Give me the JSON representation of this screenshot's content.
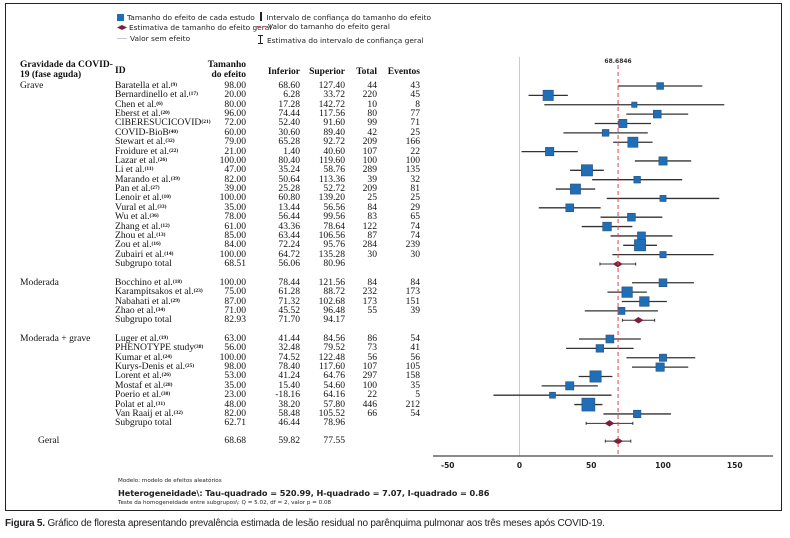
{
  "legend": {
    "study_effect": "Tamanho do efeito de cada estudo",
    "overall_estimate": "Estimativa de tamanho do efeito geral",
    "no_effect": "Valor sem efeito",
    "study_ci": "Intervalo de confiança do tamanho do efeito",
    "overall_value": "Valor do tamanho do efeito geral",
    "overall_ci": "Estimativa do intervalo de confiança geral"
  },
  "headers": {
    "severity": "Gravidade da COVID-19 (fase aguda)",
    "id": "ID",
    "effect": "Tamanho do efeito",
    "lower": "Inferior",
    "upper": "Superior",
    "total": "Total",
    "events": "Eventos"
  },
  "colors": {
    "study_marker": "#1f6fb8",
    "summary_marker": "#7a1f3d",
    "reference_line": "#e0444f",
    "zero_line": "#c8c8d8"
  },
  "footer": {
    "model": "Modelo: modelo de efeitos aleatórios",
    "heterogeneity": "Heterogeneidade\\: Tau-quadrado = 520.99, H-quadrado = 7.07, I-quadrado = 0.86",
    "homogeneity": "Teste da homogeneidade entre subgrupos\\: Q = 5.02, df = 2, valor p = 0.08"
  },
  "caption": {
    "label": "Figura 5.",
    "text": " Gráfico de floresta apresentando prevalência estimada de lesão residual no parênquima pulmonar aos três meses após COVID-19."
  },
  "chart_data": {
    "type": "forest",
    "title": "",
    "xlabel": "",
    "xlim": [
      -50,
      175
    ],
    "xticks": [
      -50,
      0,
      50,
      100,
      150
    ],
    "reference_value": 0,
    "overall_effect_label": "68.6846",
    "overall_effect_value": 68.6846,
    "groups": [
      {
        "name": "Grave",
        "studies": [
          {
            "id": "Baratella et al.",
            "ref": "(9)",
            "effect": 98.0,
            "lower": 68.6,
            "upper": 127.4,
            "total": 44,
            "events": 43
          },
          {
            "id": "Bernardinello et al.",
            "ref": "(17)",
            "effect": 20.0,
            "lower": 6.28,
            "upper": 33.72,
            "total": 220,
            "events": 45
          },
          {
            "id": "Chen et al.",
            "ref": "(6)",
            "effect": 80.0,
            "lower": 17.28,
            "upper": 142.72,
            "total": 10,
            "events": 8
          },
          {
            "id": "Eberst et al.",
            "ref": "(20)",
            "effect": 96.0,
            "lower": 74.44,
            "upper": 117.56,
            "total": 80,
            "events": 77
          },
          {
            "id": "CIBERESUCICOVID",
            "ref": "(21)",
            "effect": 72.0,
            "lower": 52.4,
            "upper": 91.6,
            "total": 99,
            "events": 71
          },
          {
            "id": "COVID-BioB",
            "ref": "(40)",
            "effect": 60.0,
            "lower": 30.6,
            "upper": 89.4,
            "total": 42,
            "events": 25
          },
          {
            "id": "Stewart et al.",
            "ref": "(32)",
            "effect": 79.0,
            "lower": 65.28,
            "upper": 92.72,
            "total": 209,
            "events": 166
          },
          {
            "id": "Froidure et al.",
            "ref": "(22)",
            "effect": 21.0,
            "lower": 1.4,
            "upper": 40.6,
            "total": 107,
            "events": 22
          },
          {
            "id": "Lazar et al.",
            "ref": "(26)",
            "effect": 100.0,
            "lower": 80.4,
            "upper": 119.6,
            "total": 100,
            "events": 100
          },
          {
            "id": "Li et al.",
            "ref": "(11)",
            "effect": 47.0,
            "lower": 35.24,
            "upper": 58.76,
            "total": 289,
            "events": 135
          },
          {
            "id": "Marando et al.",
            "ref": "(39)",
            "effect": 82.0,
            "lower": 50.64,
            "upper": 113.36,
            "total": 39,
            "events": 32
          },
          {
            "id": "Pan et al.",
            "ref": "(27)",
            "effect": 39.0,
            "lower": 25.28,
            "upper": 52.72,
            "total": 209,
            "events": 81
          },
          {
            "id": "Lenoir et al.",
            "ref": "(10)",
            "effect": 100.0,
            "lower": 60.8,
            "upper": 139.2,
            "total": 25,
            "events": 25
          },
          {
            "id": "Vural et al.",
            "ref": "(33)",
            "effect": 35.0,
            "lower": 13.44,
            "upper": 56.56,
            "total": 84,
            "events": 29
          },
          {
            "id": "Wu et al.",
            "ref": "(36)",
            "effect": 78.0,
            "lower": 56.44,
            "upper": 99.56,
            "total": 83,
            "events": 65
          },
          {
            "id": "Zhang et al.",
            "ref": "(12)",
            "effect": 61.0,
            "lower": 43.36,
            "upper": 78.64,
            "total": 122,
            "events": 74
          },
          {
            "id": "Zhou et al.",
            "ref": "(13)",
            "effect": 85.0,
            "lower": 63.44,
            "upper": 106.56,
            "total": 87,
            "events": 74
          },
          {
            "id": "Zou et al.",
            "ref": "(16)",
            "effect": 84.0,
            "lower": 72.24,
            "upper": 95.76,
            "total": 284,
            "events": 239
          },
          {
            "id": "Zubairi et al.",
            "ref": "(14)",
            "effect": 100.0,
            "lower": 64.72,
            "upper": 135.28,
            "total": 30,
            "events": 30
          }
        ],
        "subtotal": {
          "id": "Subgrupo total",
          "effect": 68.51,
          "lower": 56.06,
          "upper": 80.96
        }
      },
      {
        "name": "Moderada",
        "studies": [
          {
            "id": "Bocchino et al.",
            "ref": "(18)",
            "effect": 100.0,
            "lower": 78.44,
            "upper": 121.56,
            "total": 84,
            "events": 84
          },
          {
            "id": "Karampitsakos et al.",
            "ref": "(23)",
            "effect": 75.0,
            "lower": 61.28,
            "upper": 88.72,
            "total": 232,
            "events": 173
          },
          {
            "id": "Nabahati et al.",
            "ref": "(29)",
            "effect": 87.0,
            "lower": 71.32,
            "upper": 102.68,
            "total": 173,
            "events": 151
          },
          {
            "id": "Zhao et al.",
            "ref": "(34)",
            "effect": 71.0,
            "lower": 45.52,
            "upper": 96.48,
            "total": 55,
            "events": 39
          }
        ],
        "subtotal": {
          "id": "Subgrupo total",
          "effect": 82.93,
          "lower": 71.7,
          "upper": 94.17
        }
      },
      {
        "name": "Moderada + grave",
        "studies": [
          {
            "id": "Luger et al.",
            "ref": "(19)",
            "effect": 63.0,
            "lower": 41.44,
            "upper": 84.56,
            "total": 86,
            "events": 54
          },
          {
            "id": "PHENOTYPE study",
            "ref": "(38)",
            "effect": 56.0,
            "lower": 32.48,
            "upper": 79.52,
            "total": 73,
            "events": 41
          },
          {
            "id": "Kumar et al.",
            "ref": "(24)",
            "effect": 100.0,
            "lower": 74.52,
            "upper": 122.48,
            "total": 56,
            "events": 56
          },
          {
            "id": "Kurys-Denis et al.",
            "ref": "(25)",
            "effect": 98.0,
            "lower": 78.4,
            "upper": 117.6,
            "total": 107,
            "events": 105
          },
          {
            "id": "Lorent et al.",
            "ref": "(26)",
            "effect": 53.0,
            "lower": 41.24,
            "upper": 64.76,
            "total": 297,
            "events": 158
          },
          {
            "id": "Mostaf et al.",
            "ref": "(28)",
            "effect": 35.0,
            "lower": 15.4,
            "upper": 54.6,
            "total": 100,
            "events": 35
          },
          {
            "id": "Poerio et al.",
            "ref": "(30)",
            "effect": 23.0,
            "lower": -18.16,
            "upper": 64.16,
            "total": 22,
            "events": 5
          },
          {
            "id": "Polat et al.",
            "ref": "(31)",
            "effect": 48.0,
            "lower": 38.2,
            "upper": 57.8,
            "total": 446,
            "events": 212
          },
          {
            "id": "Van Raaij et al.",
            "ref": "(32)",
            "effect": 82.0,
            "lower": 58.48,
            "upper": 105.52,
            "total": 66,
            "events": 54
          }
        ],
        "subtotal": {
          "id": "Subgrupo total",
          "effect": 62.71,
          "lower": 46.44,
          "upper": 78.96
        }
      }
    ],
    "overall": {
      "name": "Geral",
      "effect": 68.68,
      "lower": 59.82,
      "upper": 77.55
    }
  }
}
